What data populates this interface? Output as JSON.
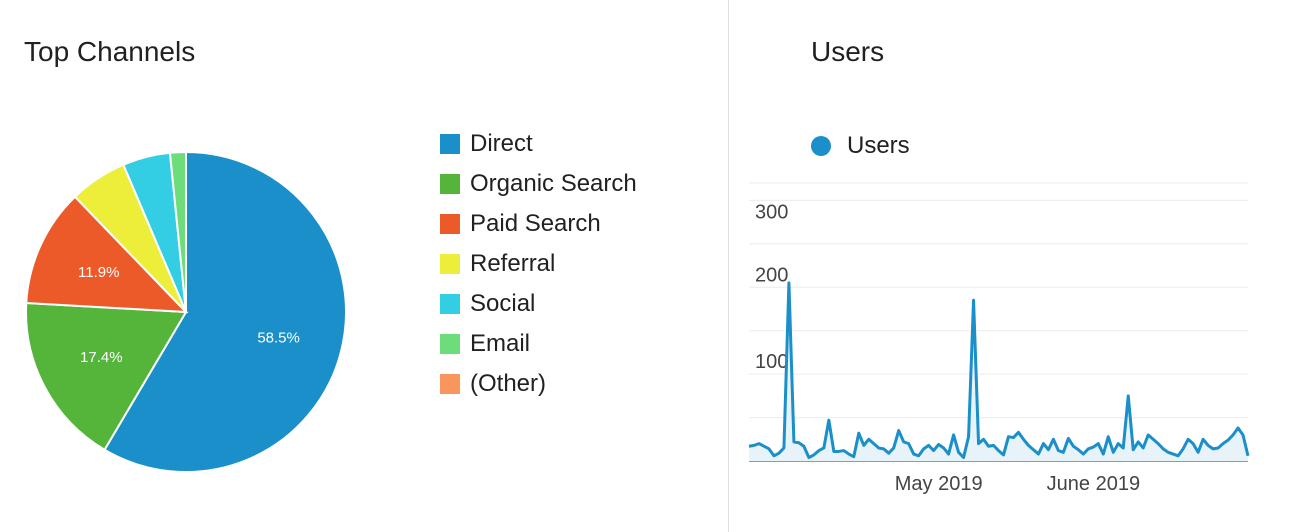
{
  "left_panel": {
    "title": "Top Channels"
  },
  "right_panel": {
    "title": "Users"
  },
  "legend": [
    {
      "label": "Direct",
      "color": "#1a8fc9"
    },
    {
      "label": "Organic Search",
      "color": "#55b43a"
    },
    {
      "label": "Paid Search",
      "color": "#ec5a2a"
    },
    {
      "label": "Referral",
      "color": "#ecee3a"
    },
    {
      "label": "Social",
      "color": "#33cde4"
    },
    {
      "label": "Email",
      "color": "#6ddd7c"
    },
    {
      "label": "(Other)",
      "color": "#f9965e"
    }
  ],
  "series_legend": {
    "label": "Users",
    "color": "#1a8fc9"
  },
  "chart_data": [
    {
      "type": "pie",
      "title": "Top Channels",
      "slices": [
        {
          "label": "Direct",
          "value": 58.5,
          "data_label": "58.5%",
          "color": "#1a8fc9"
        },
        {
          "label": "Organic Search",
          "value": 17.4,
          "data_label": "17.4%",
          "color": "#55b43a"
        },
        {
          "label": "Paid Search",
          "value": 11.9,
          "data_label": "11.9%",
          "color": "#ec5a2a"
        },
        {
          "label": "Referral",
          "value": 5.8,
          "data_label": "",
          "color": "#ecee3a"
        },
        {
          "label": "Social",
          "value": 4.8,
          "data_label": "",
          "color": "#33cde4"
        },
        {
          "label": "Email",
          "value": 1.6,
          "data_label": "",
          "color": "#6ddd7c"
        },
        {
          "label": "(Other)",
          "value": 0.0,
          "data_label": "",
          "color": "#f9965e"
        }
      ],
      "legend_position": "right"
    },
    {
      "type": "area",
      "title": "Users",
      "series": [
        {
          "name": "Users",
          "color": "#1a8fc9",
          "values": [
            17,
            18,
            20,
            17,
            14,
            6,
            9,
            15,
            205,
            22,
            21,
            17,
            4,
            7,
            12,
            15,
            47,
            11,
            11,
            12,
            8,
            5,
            32,
            18,
            25,
            20,
            15,
            14,
            9,
            15,
            35,
            22,
            20,
            8,
            6,
            14,
            18,
            12,
            19,
            15,
            8,
            30,
            10,
            4,
            28,
            185,
            20,
            25,
            17,
            18,
            12,
            7,
            28,
            27,
            33,
            25,
            18,
            13,
            8,
            20,
            13,
            25,
            12,
            10,
            26,
            17,
            13,
            8,
            14,
            16,
            20,
            8,
            28,
            10,
            20,
            15,
            75,
            13,
            22,
            15,
            30,
            25,
            20,
            14,
            10,
            8,
            6,
            14,
            25,
            20,
            10,
            25,
            18,
            14,
            15,
            20,
            24,
            30,
            38,
            30,
            6
          ]
        }
      ],
      "x_start": "2019-04-01",
      "x_end": "2019-07-10",
      "x_ticks": [
        "May 2019",
        "June 2019"
      ],
      "y_ticks": [
        100,
        200,
        300
      ],
      "ylim": [
        0,
        320
      ],
      "grid": true,
      "legend_position": "top-left"
    }
  ]
}
